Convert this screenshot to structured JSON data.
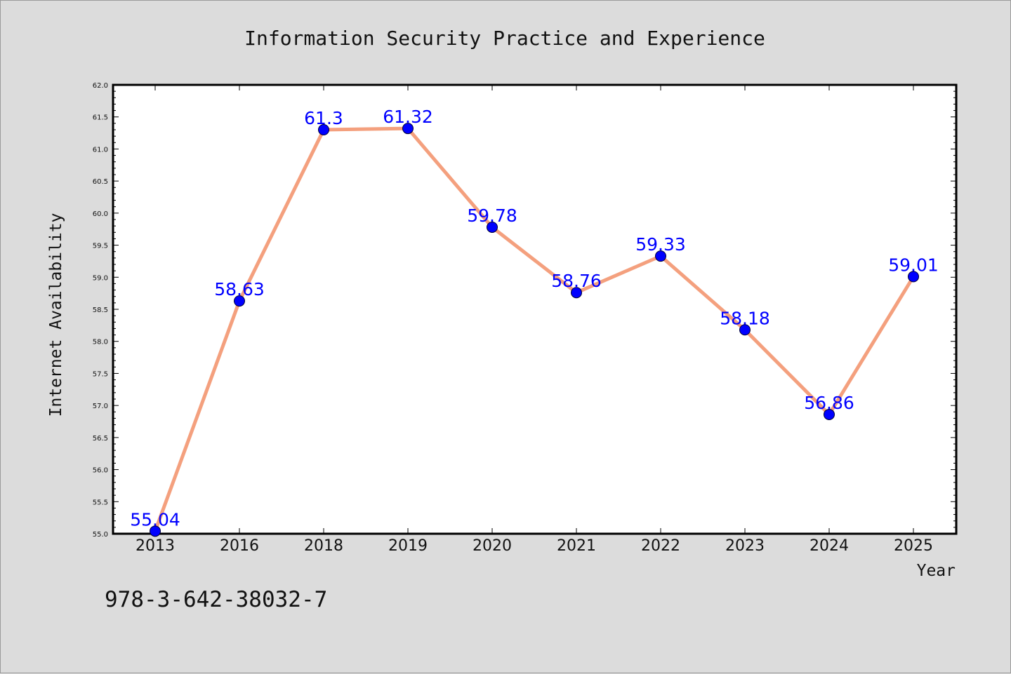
{
  "chart_data": {
    "type": "line",
    "title": "Information Security Practice and Experience",
    "xlabel": "Year",
    "ylabel": "Internet Availability",
    "categories": [
      "2013",
      "2016",
      "2018",
      "2019",
      "2020",
      "2021",
      "2022",
      "2023",
      "2024",
      "2025"
    ],
    "series": [
      {
        "values": [
          55.04,
          58.63,
          61.3,
          61.32,
          59.78,
          58.76,
          59.33,
          58.18,
          56.86,
          59.01
        ]
      }
    ],
    "data_labels": [
      "55.04",
      "58.63",
      "61.3",
      "61.32",
      "59.78",
      "58.76",
      "59.33",
      "58.18",
      "56.86",
      "59.01"
    ],
    "ylim": [
      55.0,
      62.0
    ],
    "yticks": [
      "55.0",
      "55.5",
      "56.0",
      "56.5",
      "57.0",
      "57.5",
      "58.0",
      "58.5",
      "59.0",
      "59.5",
      "60.0",
      "60.5",
      "61.0",
      "61.5",
      "62.0"
    ],
    "grid": false,
    "legend": "none",
    "colors": {
      "line": "#f4a07e",
      "marker": "#0000ff",
      "data_label": "#0000ff",
      "background": "#dcdcdc",
      "plot_background": "#ffffff"
    }
  },
  "annotation": "978-3-642-38032-7"
}
